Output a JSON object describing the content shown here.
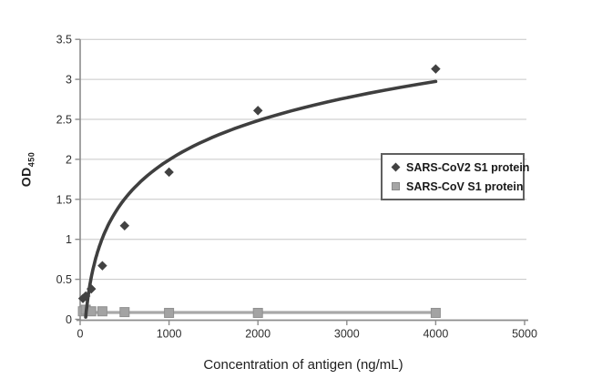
{
  "colors": {
    "background": "#ffffff",
    "gridline": "#c6c6c6",
    "axis": "#8c8c8c",
    "tick_text": "#2e2e2e",
    "title_text": "#1f1f1f",
    "cov2_series": "#424242",
    "cov2_trendline": "#3f3f3f",
    "cov_series_fill": "#a3a3a3",
    "cov_series_stroke": "#8f8f8f",
    "cov_trendline": "#a8a8a8"
  },
  "chart_data": {
    "type": "scatter",
    "title": "",
    "xlabel": "Concentration of antigen (ng/mL)",
    "ylabel": "OD",
    "ylabel_subscript": "450",
    "xlim": [
      0,
      5000
    ],
    "ylim": [
      0,
      3.5
    ],
    "x_ticks": [
      0,
      1000,
      2000,
      3000,
      4000,
      5000
    ],
    "y_ticks": [
      0,
      0.5,
      1,
      1.5,
      2,
      2.5,
      3,
      3.5
    ],
    "grid": "horizontal",
    "legend_position": "middle-right",
    "series": [
      {
        "name": "SARS-CoV2 S1 protein",
        "marker": "diamond",
        "points": [
          [
            31.25,
            0.26
          ],
          [
            62.5,
            0.29
          ],
          [
            125,
            0.38
          ],
          [
            250,
            0.67
          ],
          [
            500,
            1.17
          ],
          [
            1000,
            1.84
          ],
          [
            2000,
            2.61
          ],
          [
            4000,
            3.13
          ]
        ],
        "trendline": {
          "type": "logarithmic",
          "a": 0.707,
          "b": -2.89,
          "domain": [
            62,
            4000
          ]
        }
      },
      {
        "name": "SARS-CoV S1 protein",
        "marker": "square",
        "points": [
          [
            31.25,
            0.1
          ],
          [
            62.5,
            0.12
          ],
          [
            125,
            0.1
          ],
          [
            250,
            0.1
          ],
          [
            500,
            0.09
          ],
          [
            1000,
            0.08
          ],
          [
            2000,
            0.08
          ],
          [
            4000,
            0.08
          ]
        ],
        "trendline": {
          "type": "flat",
          "od": 0.085,
          "domain": [
            0,
            4000
          ]
        }
      }
    ]
  }
}
